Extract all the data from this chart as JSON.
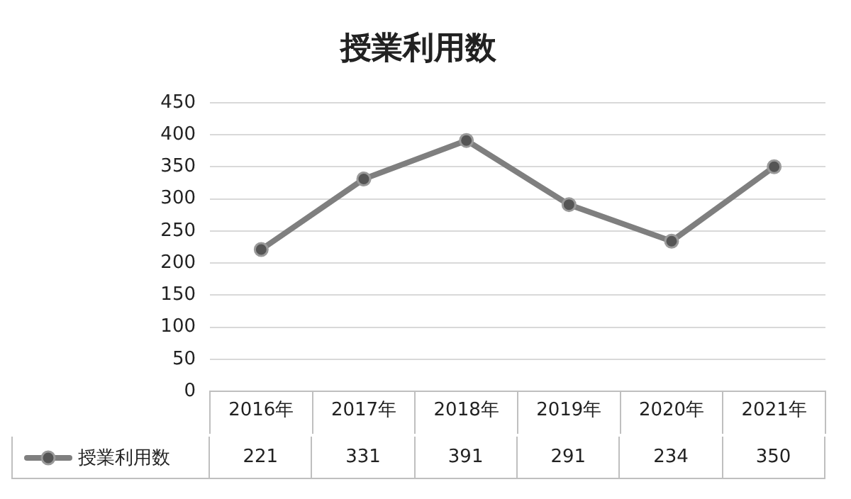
{
  "chart_data": {
    "type": "line",
    "title": "授業利用数",
    "categories": [
      "2016年",
      "2017年",
      "2018年",
      "2019年",
      "2020年",
      "2021年"
    ],
    "series": [
      {
        "name": "授業利用数",
        "color": "#7f7f7f",
        "values": [
          221,
          331,
          391,
          291,
          234,
          350
        ]
      }
    ],
    "ylim": [
      0,
      450
    ],
    "yticks": [
      0,
      50,
      100,
      150,
      200,
      250,
      300,
      350,
      400,
      450
    ],
    "grid": "y",
    "legend": "bottom",
    "marker": "circle",
    "line_style": "solid",
    "data_labels": true
  }
}
